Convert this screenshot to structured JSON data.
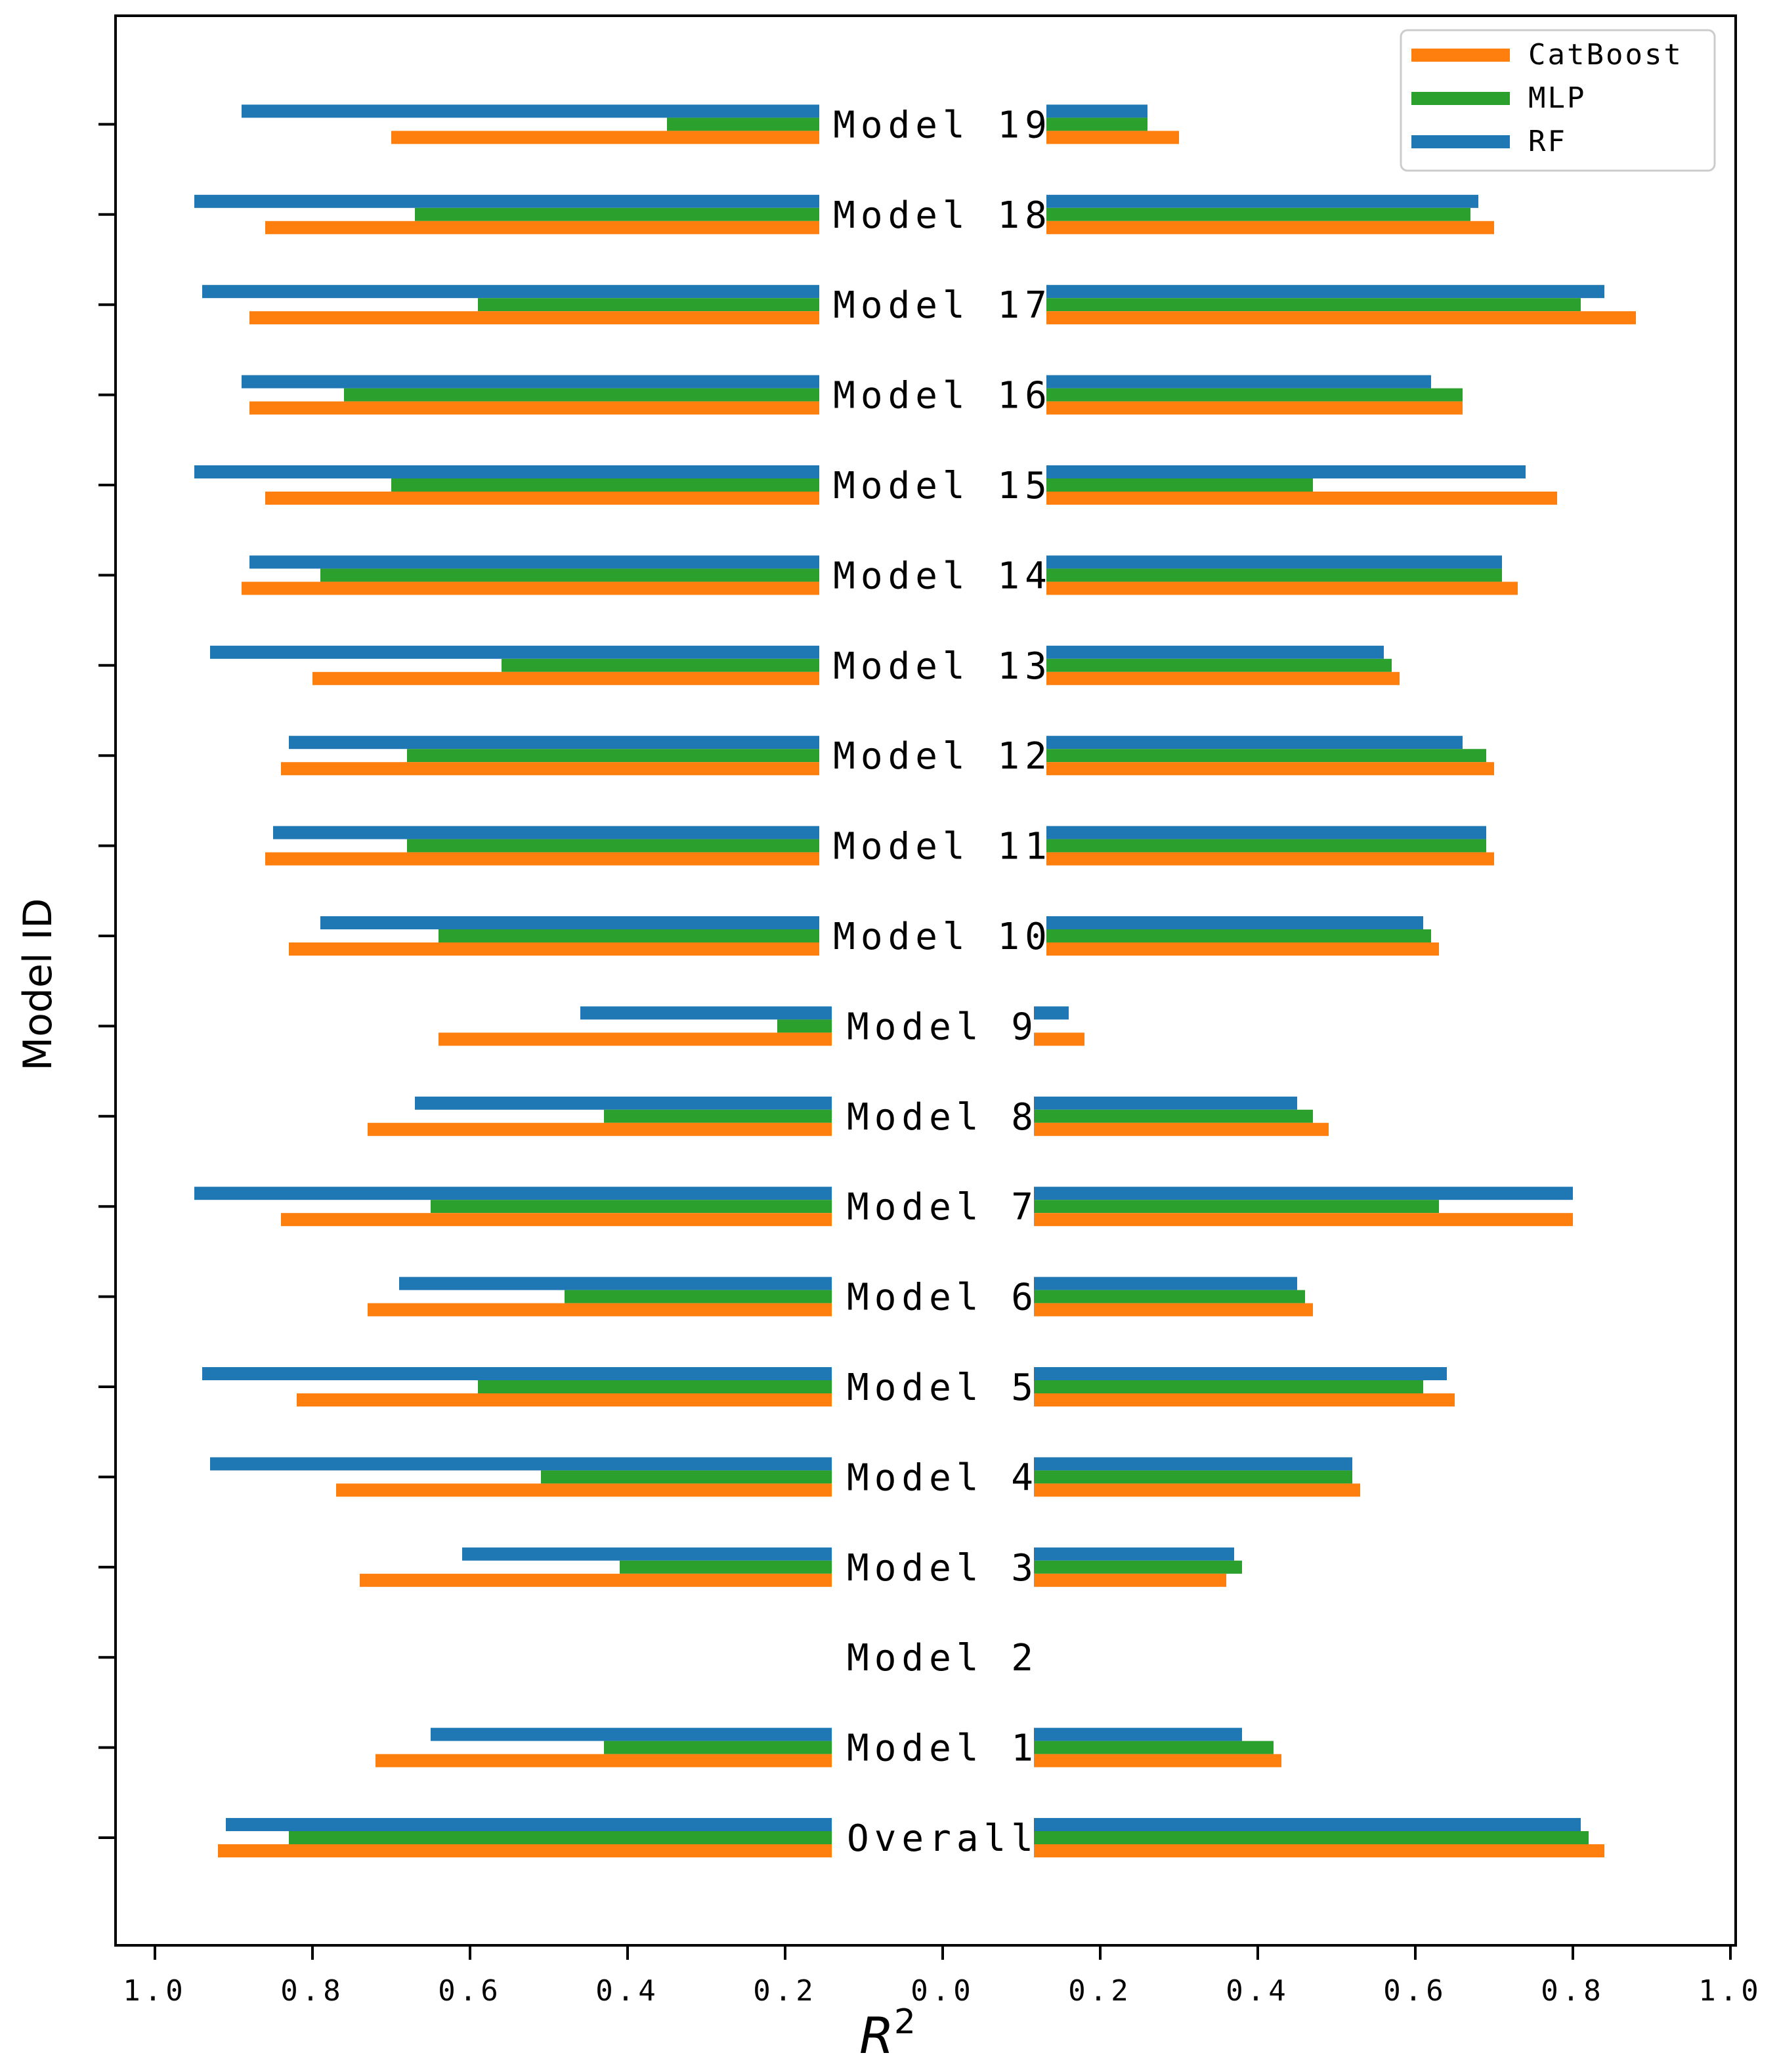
{
  "chart_data": {
    "type": "bar",
    "orientation": "horizontal-mirrored",
    "xlabel": "R",
    "xlabel_superscript": "2",
    "ylabel": "Model ID",
    "xlim_each_side": [
      0,
      1.0
    ],
    "x_tick_values": [
      1.0,
      0.8,
      0.6,
      0.4,
      0.2,
      0.0,
      0.2,
      0.4,
      0.6,
      0.8,
      1.0
    ],
    "x_tick_labels": [
      "1.0",
      "0.8",
      "0.6",
      "0.4",
      "0.2",
      "0.0",
      "0.2",
      "0.4",
      "0.6",
      "0.8",
      "1.0"
    ],
    "legend_placement": "top-right",
    "categories": [
      "Overall",
      "Model 1",
      "Model 2",
      "Model 3",
      "Model 4",
      "Model 5",
      "Model 6",
      "Model 7",
      "Model 8",
      "Model 9",
      "Model 10",
      "Model 11",
      "Model 12",
      "Model 13",
      "Model 14",
      "Model 15",
      "Model 16",
      "Model 17",
      "Model 18",
      "Model 19"
    ],
    "series": [
      {
        "name": "CatBoost",
        "color": "#ff7f0e",
        "left_values": [
          0.92,
          0.72,
          null,
          0.74,
          0.77,
          0.82,
          0.73,
          0.84,
          0.73,
          0.64,
          0.83,
          0.86,
          0.84,
          0.8,
          0.89,
          0.86,
          0.88,
          0.88,
          0.86,
          0.7
        ],
        "right_values": [
          0.84,
          0.43,
          null,
          0.36,
          0.53,
          0.65,
          0.47,
          0.8,
          0.49,
          0.18,
          0.63,
          0.7,
          0.7,
          0.58,
          0.73,
          0.78,
          0.66,
          0.88,
          0.7,
          0.3
        ]
      },
      {
        "name": "MLP",
        "color": "#2ca02c",
        "left_values": [
          0.83,
          0.43,
          null,
          0.41,
          0.51,
          0.59,
          0.48,
          0.65,
          0.43,
          0.21,
          0.64,
          0.68,
          0.68,
          0.56,
          0.79,
          0.7,
          0.76,
          0.59,
          0.67,
          0.35
        ],
        "right_values": [
          0.82,
          0.42,
          null,
          0.38,
          0.52,
          0.61,
          0.46,
          0.63,
          0.47,
          null,
          0.62,
          0.69,
          0.69,
          0.57,
          0.71,
          0.47,
          0.66,
          0.81,
          0.67,
          0.26
        ]
      },
      {
        "name": "RF",
        "color": "#1f77b4",
        "left_values": [
          0.91,
          0.65,
          null,
          0.61,
          0.93,
          0.94,
          0.69,
          0.95,
          0.67,
          0.46,
          0.79,
          0.85,
          0.83,
          0.93,
          0.88,
          0.95,
          0.89,
          0.94,
          0.95,
          0.89
        ],
        "right_values": [
          0.81,
          0.38,
          null,
          0.37,
          0.52,
          0.64,
          0.45,
          0.8,
          0.45,
          0.16,
          0.61,
          0.69,
          0.66,
          0.56,
          0.71,
          0.74,
          0.62,
          0.84,
          0.68,
          0.26
        ]
      }
    ]
  }
}
